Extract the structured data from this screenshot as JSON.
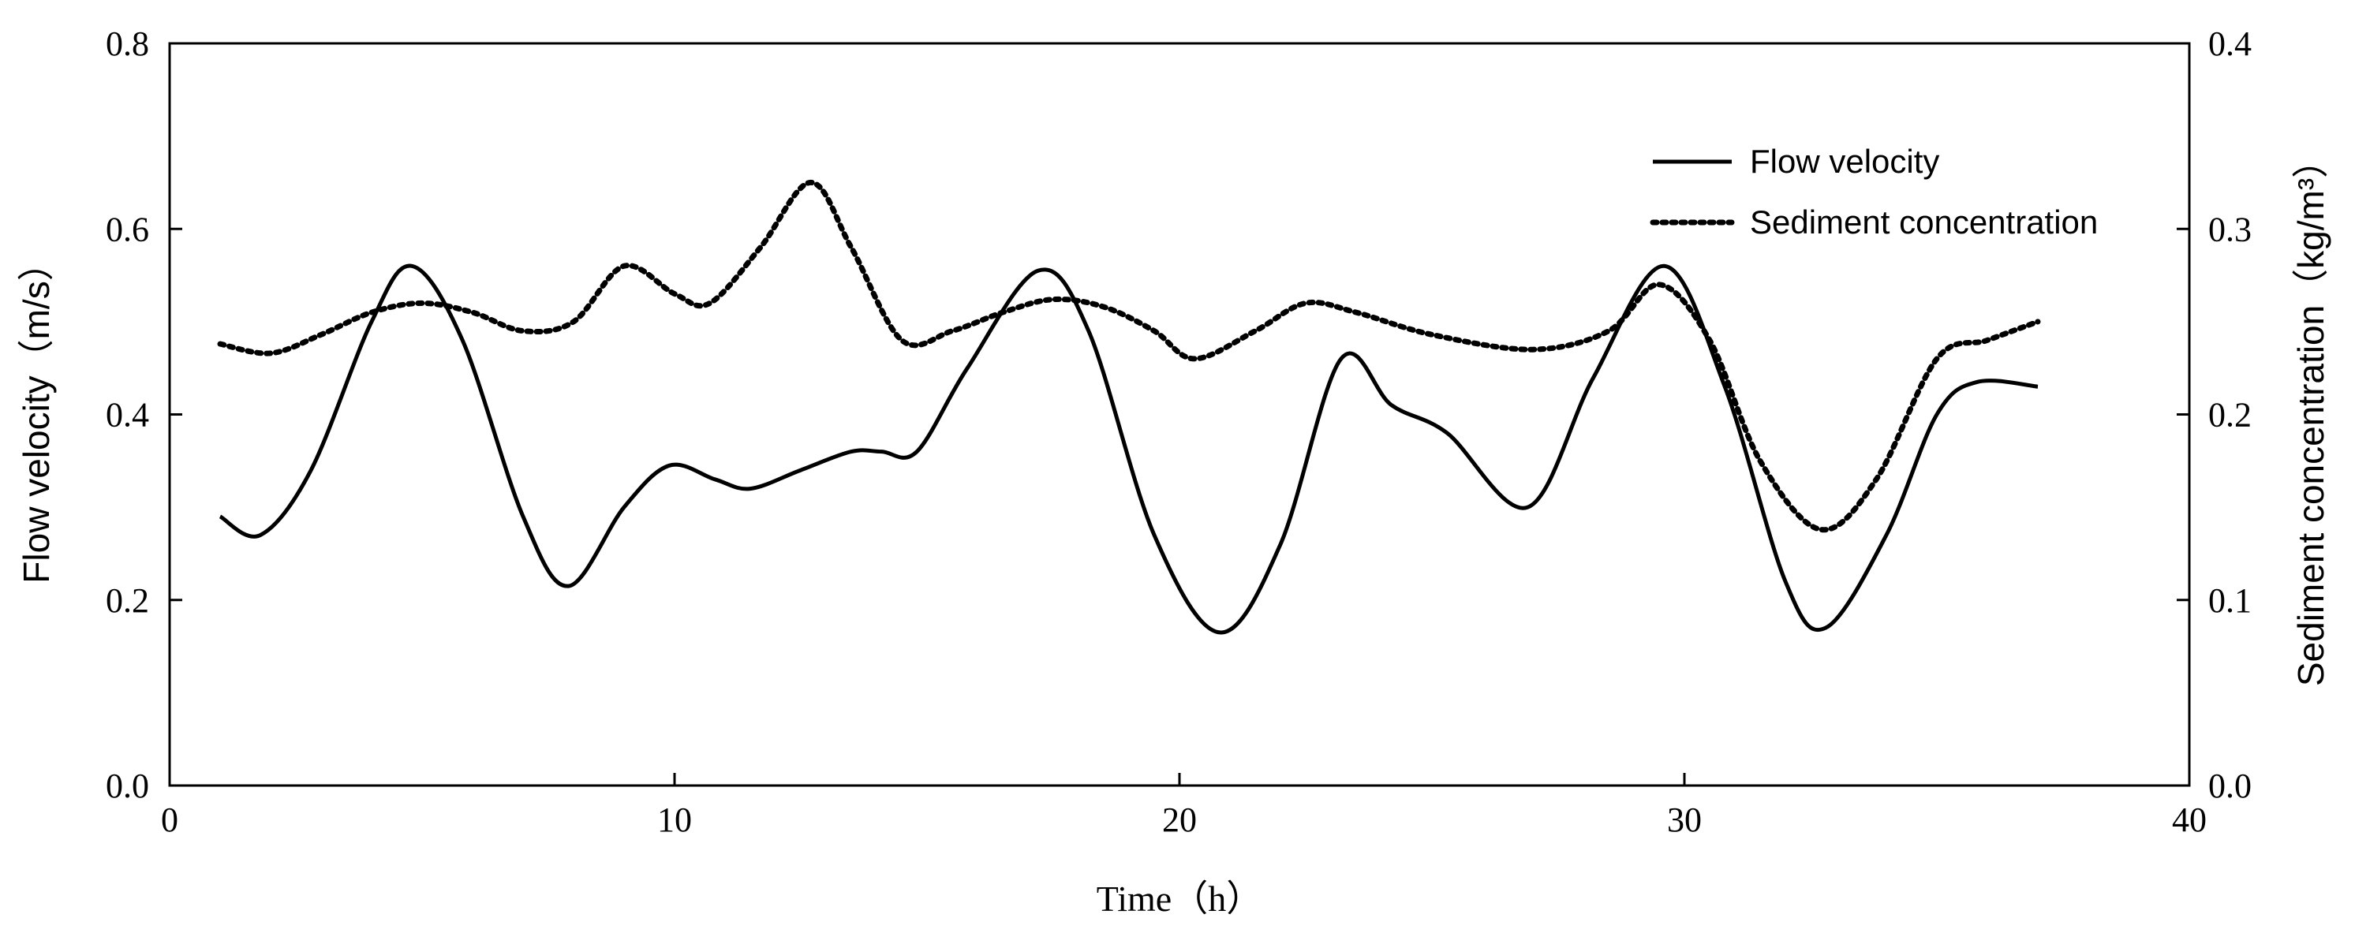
{
  "chart_data": {
    "type": "line",
    "xlabel": "Time（h）",
    "ylabel_left": "Flow velocity（m/s）",
    "ylabel_right": "Sediment concentration（kg/m³）",
    "xlim": [
      0,
      40
    ],
    "ylim_left": [
      0.0,
      0.8
    ],
    "ylim_right": [
      0.0,
      0.4
    ],
    "x_ticks": [
      "0",
      "10",
      "20",
      "30",
      "40"
    ],
    "y_left_ticks": [
      "0.0",
      "0.2",
      "0.4",
      "0.6",
      "0.8"
    ],
    "y_right_ticks": [
      "0.0",
      "0.1",
      "0.2",
      "0.3",
      "0.4"
    ],
    "grid": false,
    "legend_position": "top-right",
    "series": [
      {
        "name": "Flow velocity",
        "axis": "left",
        "style": "solid",
        "x": [
          1.0,
          1.8,
          2.8,
          4.0,
          4.8,
          5.8,
          7.0,
          7.9,
          9.0,
          9.9,
          10.8,
          11.5,
          12.5,
          13.5,
          14.1,
          14.8,
          15.8,
          17.2,
          18.2,
          19.5,
          20.8,
          22.0,
          23.2,
          24.2,
          25.3,
          26.9,
          28.2,
          29.6,
          30.8,
          32.0,
          32.8,
          34.0,
          35.0,
          35.8,
          37.0
        ],
        "values": [
          0.29,
          0.27,
          0.34,
          0.5,
          0.56,
          0.48,
          0.29,
          0.215,
          0.3,
          0.345,
          0.33,
          0.32,
          0.34,
          0.36,
          0.36,
          0.36,
          0.45,
          0.555,
          0.49,
          0.27,
          0.165,
          0.26,
          0.46,
          0.41,
          0.38,
          0.3,
          0.44,
          0.56,
          0.43,
          0.22,
          0.17,
          0.27,
          0.4,
          0.435,
          0.43
        ]
      },
      {
        "name": "Sediment concentration",
        "axis": "right",
        "style": "dotted",
        "x": [
          1.0,
          2.0,
          3.0,
          4.0,
          5.0,
          6.0,
          7.0,
          8.0,
          9.0,
          10.0,
          10.7,
          11.7,
          12.7,
          13.5,
          14.5,
          15.5,
          16.5,
          17.5,
          18.5,
          19.5,
          20.3,
          21.5,
          22.5,
          23.5,
          25.0,
          27.0,
          28.5,
          29.5,
          30.5,
          31.5,
          32.7,
          33.8,
          35.0,
          36.0,
          37.0
        ],
        "values": [
          0.238,
          0.233,
          0.243,
          0.255,
          0.26,
          0.255,
          0.245,
          0.25,
          0.28,
          0.265,
          0.26,
          0.29,
          0.325,
          0.29,
          0.24,
          0.245,
          0.255,
          0.262,
          0.258,
          0.245,
          0.23,
          0.245,
          0.26,
          0.255,
          0.243,
          0.235,
          0.245,
          0.27,
          0.24,
          0.175,
          0.138,
          0.165,
          0.23,
          0.24,
          0.25
        ]
      }
    ]
  }
}
